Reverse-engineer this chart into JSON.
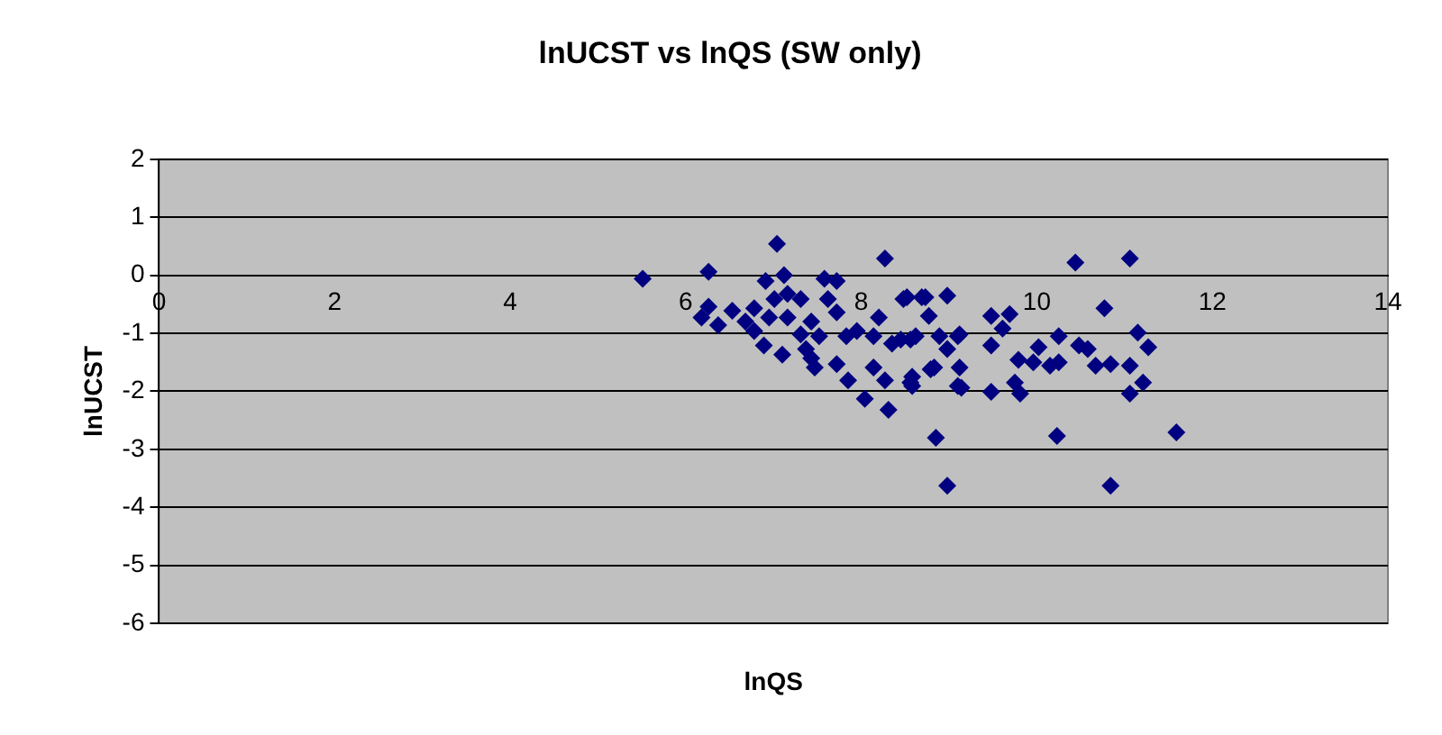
{
  "chart_data": {
    "type": "scatter",
    "title": "lnUCST vs lnQS (SW only)",
    "xlabel": "lnQS",
    "ylabel": "lnUCST",
    "xlim": [
      0,
      14
    ],
    "ylim": [
      -6,
      2
    ],
    "xticks": [
      0,
      2,
      4,
      6,
      8,
      10,
      12,
      14
    ],
    "yticks": [
      -6,
      -5,
      -4,
      -3,
      -2,
      -1,
      0,
      1,
      2
    ],
    "grid": "y",
    "legend": false,
    "marker": "diamond",
    "series": [
      {
        "color": "#000080",
        "x": [
          5.51,
          6.26,
          7.04,
          8.27,
          10.44,
          11.06,
          10.77,
          11.15,
          11.27,
          11.59,
          10.84,
          10.23,
          8.98,
          8.85,
          11.06,
          11.21,
          11.06,
          10.84,
          10.67,
          10.58,
          10.48,
          10.25,
          10.25,
          10.15,
          10.02,
          9.96,
          9.79,
          9.81,
          9.75,
          9.48,
          9.69,
          9.48,
          9.61,
          9.48,
          9.14,
          9.12,
          9.12,
          8.73,
          8.52,
          8.77,
          8.79,
          8.58,
          8.58,
          8.89,
          8.98,
          8.62,
          8.45,
          6.26,
          6.37,
          6.18,
          6.53,
          6.68,
          6.78,
          6.78,
          6.91,
          7.12,
          7.01,
          7.31,
          7.16,
          6.89,
          7.1,
          7.31,
          7.43,
          7.58,
          7.72,
          7.62,
          7.72,
          7.37,
          7.47,
          7.72,
          7.85,
          8.04,
          8.31,
          8.27,
          8.14,
          7.83,
          7.95,
          8.2,
          8.48,
          8.69,
          8.98,
          8.83,
          8.56,
          8.56,
          8.35,
          8.14,
          9.1,
          9.1,
          7.52,
          7.16,
          6.95,
          7.43
        ],
        "values": [
          -0.06,
          0.06,
          0.54,
          0.29,
          0.22,
          0.29,
          -0.57,
          -0.99,
          -1.24,
          -2.71,
          -3.63,
          -2.77,
          -3.63,
          -2.8,
          -2.04,
          -1.85,
          -1.56,
          -1.53,
          -1.56,
          -1.27,
          -1.21,
          -1.5,
          -1.05,
          -1.56,
          -1.24,
          -1.5,
          -1.46,
          -2.04,
          -1.85,
          -2.01,
          -0.67,
          -0.7,
          -0.92,
          -1.21,
          -1.94,
          -1.59,
          -1.02,
          -0.38,
          -0.38,
          -0.7,
          -1.62,
          -1.91,
          -1.75,
          -1.05,
          -1.27,
          -1.05,
          -1.11,
          -0.54,
          -0.86,
          -0.73,
          -0.61,
          -0.8,
          -0.57,
          -0.96,
          -0.1,
          0.0,
          -0.41,
          -0.41,
          -0.73,
          -1.21,
          -1.37,
          -1.02,
          -0.8,
          -0.06,
          -0.1,
          -0.41,
          -0.64,
          -1.27,
          -1.59,
          -1.53,
          -1.81,
          -2.13,
          -2.32,
          -1.81,
          -1.59,
          -1.05,
          -0.96,
          -0.73,
          -0.41,
          -0.38,
          -0.35,
          -1.59,
          -1.85,
          -1.11,
          -1.18,
          -1.05,
          -1.91,
          -1.05,
          -1.05,
          -0.32,
          -0.73,
          -1.43
        ]
      }
    ]
  }
}
